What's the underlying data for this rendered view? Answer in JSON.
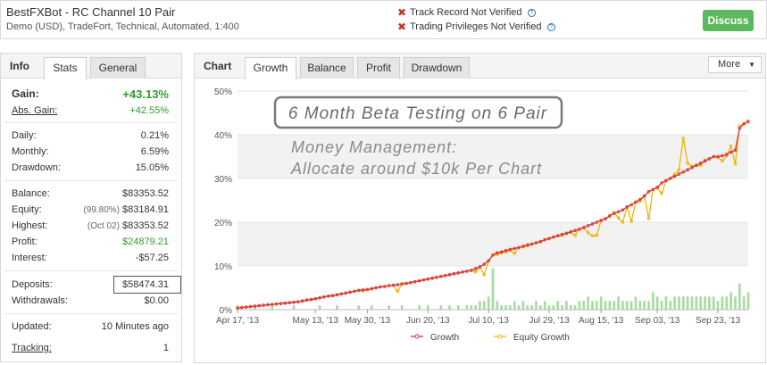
{
  "header": {
    "title": "BestFXBot - RC Channel 10 Pair",
    "subtitle": "Demo (USD), TradeFort, Technical, Automated, 1:400",
    "verification": [
      {
        "label": "Track Record Not Verified"
      },
      {
        "label": "Trading Privileges Not Verified"
      }
    ],
    "discuss_label": "Discuss"
  },
  "info": {
    "title": "Info",
    "tabs": [
      "Stats",
      "General"
    ],
    "gain_label": "Gain:",
    "gain_value": "+43.13%",
    "abs_gain_label": "Abs. Gain:",
    "abs_gain_value": "+42.55%",
    "daily_label": "Daily:",
    "daily_value": "0.21%",
    "monthly_label": "Monthly:",
    "monthly_value": "6.59%",
    "drawdown_label": "Drawdown:",
    "drawdown_value": "15.05%",
    "balance_label": "Balance:",
    "balance_value": "$83353.52",
    "equity_label": "Equity:",
    "equity_sub": "(99.80%)",
    "equity_value": "$83184.91",
    "highest_label": "Highest:",
    "highest_sub": "(Oct 02)",
    "highest_value": "$83353.52",
    "profit_label": "Profit:",
    "profit_value": "$24879.21",
    "interest_label": "Interest:",
    "interest_value": "-$57.25",
    "deposits_label": "Deposits:",
    "deposits_value": "$58474.31",
    "withdrawals_label": "Withdrawals:",
    "withdrawals_value": "$0.00",
    "updated_label": "Updated:",
    "updated_value": "10 Minutes ago",
    "tracking_label": "Tracking:",
    "tracking_value": "1"
  },
  "chart_panel": {
    "title": "Chart",
    "tabs": [
      "Growth",
      "Balance",
      "Profit",
      "Drawdown"
    ],
    "more_label": "More",
    "annotation_box": "6 Month Beta Testing on 6 Pair",
    "annotation_line1": "Money Management:",
    "annotation_line2": "Allocate around $10k Per Chart"
  },
  "colors": {
    "growth": "#d9363e",
    "equity": "#f0b400",
    "bars": "#a8dba0",
    "gain_green": "#2e9c2e",
    "discuss": "#5cb85c"
  },
  "chart_data": {
    "type": "line",
    "ylim": [
      0,
      50
    ],
    "yticks": [
      "0%",
      "10%",
      "20%",
      "30%",
      "40%",
      "50%"
    ],
    "xticks": [
      "Apr 17, '13",
      "May 13, '13",
      "May 30, '13",
      "Jun 20, '13",
      "Jul 10, '13",
      "Jul 29, '13",
      "Aug 15, '13",
      "Sep 03, '13",
      "Sep 23, '13"
    ],
    "x_tick_index": [
      0,
      18,
      30,
      44,
      58,
      72,
      84,
      97,
      111
    ],
    "legend": [
      "Growth",
      "Equity Growth"
    ],
    "series": [
      {
        "name": "Growth",
        "values": [
          0.4,
          0.5,
          0.6,
          0.7,
          0.8,
          0.9,
          1.0,
          1.1,
          1.2,
          1.3,
          1.4,
          1.5,
          1.6,
          1.7,
          1.8,
          2.0,
          2.2,
          2.3,
          2.5,
          2.7,
          2.9,
          3.1,
          3.2,
          3.4,
          3.6,
          3.8,
          4.0,
          4.2,
          4.4,
          4.5,
          4.6,
          4.8,
          5.0,
          5.2,
          5.3,
          5.5,
          5.6,
          5.7,
          5.9,
          6.0,
          6.2,
          6.4,
          6.6,
          6.8,
          7.0,
          7.2,
          7.4,
          7.6,
          7.8,
          8.0,
          8.2,
          8.4,
          8.6,
          8.8,
          9.0,
          9.4,
          9.8,
          10.4,
          11.2,
          12.5,
          13.0,
          13.2,
          13.5,
          13.8,
          14.0,
          14.2,
          14.5,
          14.8,
          15.0,
          15.3,
          15.6,
          16.0,
          16.3,
          16.6,
          16.9,
          17.2,
          17.5,
          17.8,
          18.1,
          18.4,
          18.8,
          19.2,
          19.6,
          20.0,
          20.4,
          20.8,
          21.5,
          22.0,
          22.4,
          22.8,
          23.5,
          24.0,
          24.6,
          25.2,
          26.0,
          27.0,
          27.5,
          28.0,
          29.0,
          29.5,
          30.0,
          30.5,
          31.0,
          31.5,
          32.0,
          32.5,
          33.0,
          33.5,
          34.0,
          34.5,
          35.0,
          35.0,
          35.2,
          35.5,
          36.0,
          36.5,
          41.5,
          42.5,
          43.1
        ]
      },
      {
        "name": "Equity Growth",
        "values": [
          0.3,
          0.5,
          0.6,
          0.7,
          0.8,
          0.9,
          1.0,
          1.1,
          1.2,
          1.3,
          1.4,
          1.5,
          1.6,
          1.7,
          1.8,
          2.0,
          2.2,
          2.3,
          2.5,
          2.7,
          2.9,
          3.1,
          3.2,
          3.4,
          3.6,
          3.8,
          4.0,
          4.2,
          4.4,
          4.3,
          4.6,
          4.8,
          5.0,
          5.2,
          5.3,
          5.5,
          5.6,
          4.2,
          5.9,
          6.0,
          6.2,
          6.4,
          6.6,
          6.8,
          7.0,
          7.2,
          7.4,
          7.6,
          7.8,
          8.0,
          8.2,
          8.4,
          8.6,
          8.8,
          9.0,
          8.6,
          9.8,
          8.0,
          11.2,
          12.5,
          12.6,
          13.0,
          13.2,
          13.6,
          12.9,
          14.2,
          14.4,
          14.6,
          15.0,
          15.3,
          15.5,
          16.0,
          16.2,
          16.6,
          16.9,
          17.0,
          17.4,
          17.7,
          17.0,
          18.4,
          18.7,
          17.6,
          16.9,
          17.0,
          20.4,
          20.8,
          21.3,
          22.2,
          21.0,
          20.0,
          23.5,
          20.2,
          24.6,
          24.8,
          26.0,
          20.8,
          27.5,
          27.8,
          26.6,
          29.5,
          30.0,
          31.0,
          32.0,
          39.2,
          33.5,
          32.8,
          33.0,
          33.0,
          34.2,
          34.5,
          35.0,
          34.8,
          34.0,
          35.2,
          37.4,
          33.3,
          42.0,
          42.5,
          42.9
        ]
      },
      {
        "name": "Bars",
        "values": [
          1,
          0,
          0,
          0,
          1,
          0,
          0,
          0,
          1,
          0,
          0,
          0,
          0,
          1,
          0,
          0,
          0,
          0,
          0,
          1,
          0,
          0,
          0,
          1,
          0,
          0,
          0,
          0,
          1,
          0,
          0,
          1,
          0,
          0,
          0,
          1,
          0,
          0,
          1,
          0,
          0,
          0,
          1,
          0,
          1,
          0,
          0,
          1,
          0,
          1,
          0,
          1,
          0,
          1,
          1,
          1,
          2,
          2,
          3,
          9.5,
          2,
          1,
          1,
          1,
          2,
          1,
          2,
          1,
          1,
          2,
          1,
          2,
          1,
          1,
          2,
          1,
          2,
          1,
          1,
          2,
          2,
          3,
          2,
          2,
          3,
          2,
          2,
          2,
          3,
          2,
          2,
          2,
          3,
          2,
          2,
          2,
          4,
          3,
          2,
          3,
          2,
          3,
          3,
          3,
          3,
          3,
          3,
          3,
          3,
          3,
          3,
          2,
          3,
          3,
          4,
          3,
          6,
          3,
          4
        ]
      }
    ]
  }
}
